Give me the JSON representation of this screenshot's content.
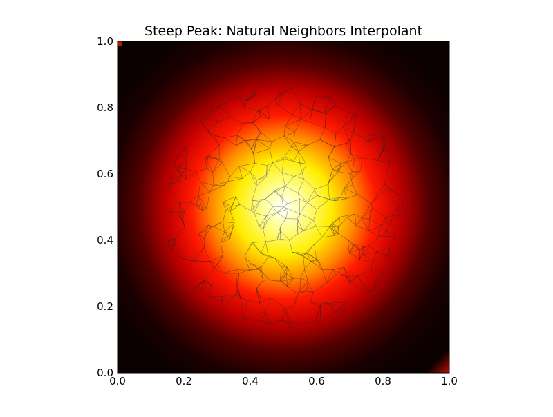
{
  "chart_data": {
    "type": "heatmap",
    "title": "Steep Peak: Natural Neighbors Interpolant",
    "xlabel": "",
    "ylabel": "",
    "xlim": [
      0.0,
      1.0
    ],
    "ylim": [
      0.0,
      1.0
    ],
    "x_ticks": [
      "0.0",
      "0.2",
      "0.4",
      "0.6",
      "0.8",
      "1.0"
    ],
    "y_ticks": [
      "0.0",
      "0.2",
      "0.4",
      "0.6",
      "0.8",
      "1.0"
    ],
    "x_tick_values": [
      0.0,
      0.2,
      0.4,
      0.6,
      0.8,
      1.0
    ],
    "y_tick_values": [
      0.0,
      0.2,
      0.4,
      0.6,
      0.8,
      1.0
    ],
    "colormap": "hot",
    "colors": [
      "#000000",
      "#cc0000",
      "#ff2200",
      "#ff8800",
      "#ffff00",
      "#ffffff"
    ],
    "peak_center": [
      0.5,
      0.5
    ],
    "peak_value": 1.0,
    "grid": false,
    "legend": "none",
    "overlay": "triangulation mesh"
  }
}
